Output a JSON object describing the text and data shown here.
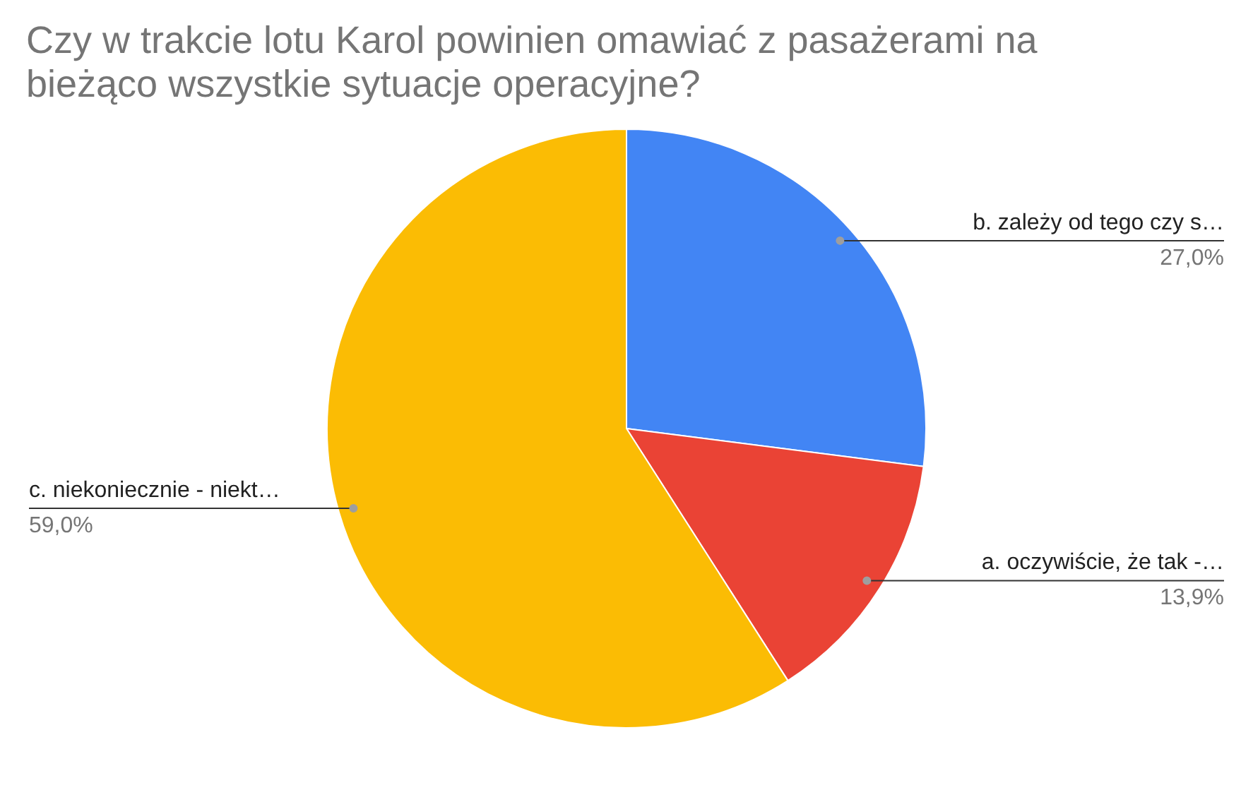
{
  "chart_data": {
    "type": "pie",
    "title": "Czy w trakcie lotu Karol powinien omawiać z pasażerami na bieżąco wszystkie sytuacje operacyjne?",
    "categories": [
      "b. zależy od tego czy s…",
      "a. oczywiście, że tak -…",
      "c. niekoniecznie - niekt…"
    ],
    "values": [
      27.0,
      13.9,
      59.0
    ],
    "colors": [
      "#4285f4",
      "#ea4335",
      "#fbbc04"
    ],
    "value_labels": [
      "27,0%",
      "13,9%",
      "59,0%"
    ]
  }
}
